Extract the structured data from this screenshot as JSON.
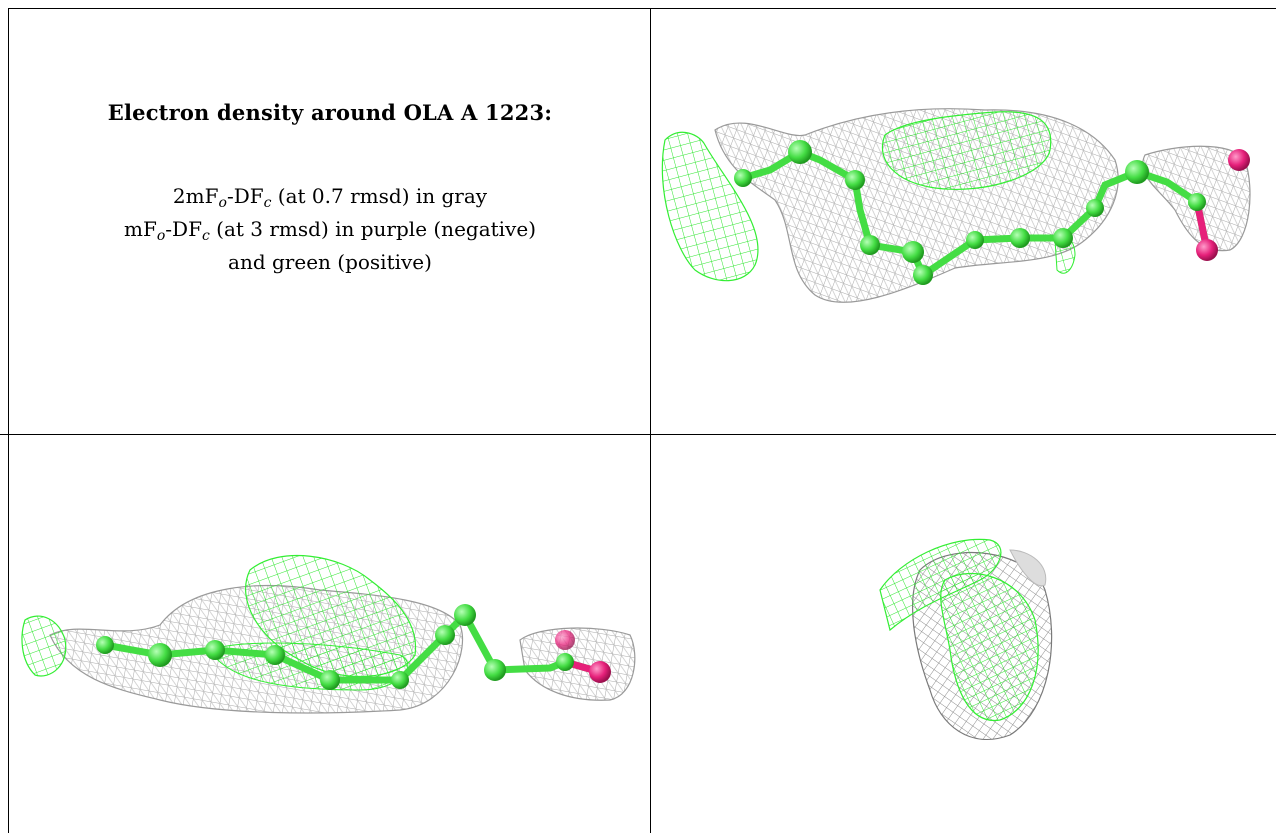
{
  "caption": {
    "title": "Electron density around OLA A 1223:",
    "line1_pre": "2mF",
    "line1_sub1": "o",
    "line1_mid": "-DF",
    "line1_sub2": "c",
    "line1_post": " (at 0.7 rmsd) in gray",
    "line2_pre": "mF",
    "line2_sub1": "o",
    "line2_mid": "-DF",
    "line2_sub2": "c",
    "line2_post": " (at 3 rmsd) in purple (negative)",
    "line3": "and green (positive)"
  },
  "colors": {
    "mesh_gray": "#9a9a9a",
    "mesh_green": "#33ee33",
    "atom_green": "#44dd44",
    "atom_oxygen": "#e6207a"
  },
  "panels": [
    {
      "name": "view-top-right"
    },
    {
      "name": "view-bottom-left"
    },
    {
      "name": "view-bottom-right"
    }
  ]
}
